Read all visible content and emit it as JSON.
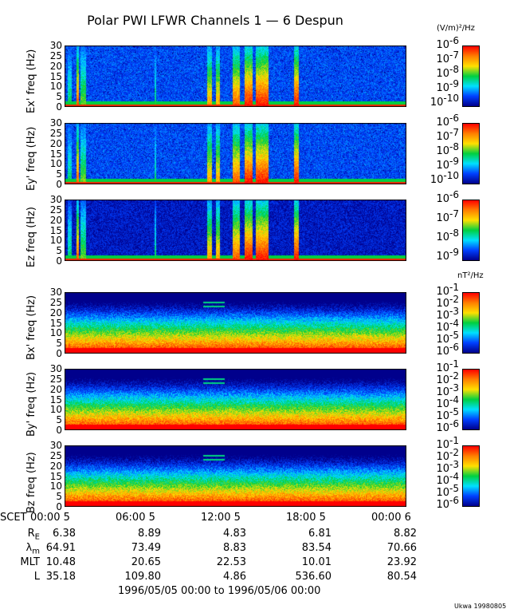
{
  "chart_data": {
    "type": "heatmap",
    "title": "Polar PWI LFWR Channels 1 — 6 Despun",
    "xlabel": "SCET",
    "xlim_hours": [
      0,
      24
    ],
    "ylim": [
      0,
      30
    ],
    "ytick_labels": [
      "30",
      "25",
      "20",
      "15",
      "10",
      "5",
      "0"
    ],
    "e_units": "(V/m)²/Hz",
    "b_units": "nT²/Hz",
    "colormap": [
      "#00008c",
      "#0040ff",
      "#00e0ff",
      "#00d040",
      "#ffe000",
      "#ff8000",
      "#ff0000"
    ],
    "panels": [
      {
        "ylabel": "Ex' freq (Hz)",
        "type": "E",
        "cbar_labels": [
          "-6",
          "-7",
          "-8",
          "-9",
          "-10"
        ],
        "cbar_range_log": [
          -10.3,
          -6
        ]
      },
      {
        "ylabel": "Ey' freq (Hz)",
        "type": "E",
        "cbar_labels": [
          "-6",
          "-7",
          "-8",
          "-9",
          "-10"
        ],
        "cbar_range_log": [
          -10.3,
          -6
        ]
      },
      {
        "ylabel": "Ez freq (Hz)",
        "type": "Ez",
        "cbar_labels": [
          "-6",
          "-7",
          "-8",
          "-9"
        ],
        "cbar_range_log": [
          -9.2,
          -6
        ]
      },
      {
        "ylabel": "Bx' freq (Hz)",
        "type": "B",
        "cbar_labels": [
          "-1",
          "-2",
          "-3",
          "-4",
          "-5",
          "-6"
        ],
        "cbar_range_log": [
          -6.5,
          -1
        ]
      },
      {
        "ylabel": "By' freq (Hz)",
        "type": "B",
        "cbar_labels": [
          "-1",
          "-2",
          "-3",
          "-4",
          "-5",
          "-6"
        ],
        "cbar_range_log": [
          -6.5,
          -1
        ]
      },
      {
        "ylabel": "Bz freq (Hz)",
        "type": "B",
        "cbar_labels": [
          "-1",
          "-2",
          "-3",
          "-4",
          "-5",
          "-6"
        ],
        "cbar_range_log": [
          -6.5,
          -1
        ]
      }
    ],
    "e_bursts_hours": [
      [
        0.2,
        0.5,
        0.5
      ],
      [
        0.8,
        1.0,
        0.9
      ],
      [
        1.1,
        1.5,
        0.6
      ],
      [
        6.3,
        6.4,
        0.5
      ],
      [
        10.0,
        10.3,
        0.8
      ],
      [
        10.6,
        10.9,
        0.8
      ],
      [
        11.8,
        12.3,
        0.9
      ],
      [
        12.6,
        13.2,
        1.0
      ],
      [
        13.4,
        14.3,
        1.0
      ],
      [
        16.1,
        16.4,
        1.0
      ]
    ],
    "b_lines_hours": [
      [
        9.7,
        11.2,
        25
      ],
      [
        9.7,
        11.2,
        23
      ]
    ],
    "xticks": [
      {
        "time": "00:00",
        "day": "5"
      },
      {
        "time": "06:00",
        "day": "5"
      },
      {
        "time": "12:00",
        "day": "5"
      },
      {
        "time": "18:00",
        "day": "5"
      },
      {
        "time": "00:00",
        "day": "6"
      }
    ],
    "ephemeris": [
      {
        "label": "R",
        "sub": "E",
        "values": [
          "6.38",
          "8.89",
          "4.83",
          "6.81",
          "8.82"
        ]
      },
      {
        "label": "λ",
        "sub": "m",
        "values": [
          "64.91",
          "73.49",
          "8.83",
          "83.54",
          "70.66"
        ]
      },
      {
        "label": "MLT",
        "sub": "",
        "values": [
          "10.48",
          "20.65",
          "22.53",
          "10.01",
          "23.92"
        ]
      },
      {
        "label": "L",
        "sub": "",
        "values": [
          "35.18",
          "109.80",
          "4.86",
          "536.60",
          "80.54"
        ]
      }
    ],
    "date_range": "1996/05/05 00:00 to 1996/05/06 00:00",
    "credit": "Ukwa 19980805"
  }
}
